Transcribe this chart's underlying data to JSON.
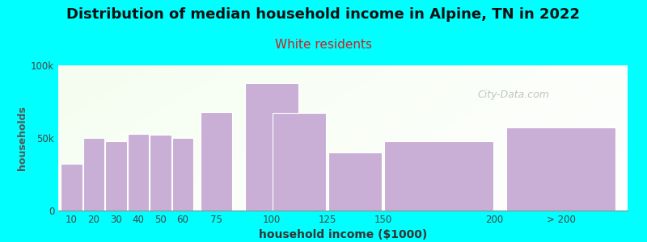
{
  "title": "Distribution of median household income in Alpine, TN in 2022",
  "subtitle": "White residents",
  "xlabel": "household income ($1000)",
  "ylabel": "households",
  "title_fontsize": 13,
  "subtitle_fontsize": 11,
  "subtitle_color": "#cc2222",
  "bar_color": "#c9aed6",
  "bar_edge_color": "#ffffff",
  "background_color": "#00ffff",
  "watermark": "City-Data.com",
  "categories": [
    "10",
    "20",
    "30",
    "40",
    "50",
    "60",
    "75",
    "100",
    "125",
    "150",
    "200",
    "> 200"
  ],
  "values": [
    32000,
    50000,
    48000,
    53000,
    52000,
    50000,
    68000,
    88000,
    67000,
    40000,
    48000,
    57000
  ],
  "ylim": [
    0,
    100000
  ],
  "ytick_labels": [
    "0",
    "50k",
    "100k"
  ],
  "ytick_vals": [
    0,
    50000,
    100000
  ]
}
